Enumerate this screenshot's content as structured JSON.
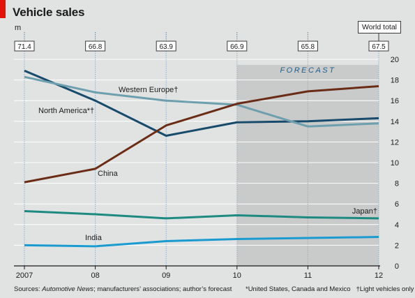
{
  "header": {
    "title": "Vehicle sales",
    "unit": "m",
    "world_total_label": "World total"
  },
  "footer": {
    "sources_prefix": "Sources: ",
    "sources_italic": "Automotive News",
    "sources_rest": "; manufacturers’ associations; author’s forecast",
    "note_1": "*United States, Canada and Mexico",
    "note_2": "†Light vehicles only"
  },
  "colors": {
    "background": "#e1e2e2",
    "forecast_shade": "#c9caca",
    "accent_red": "#e3120b",
    "north_america": "#174a6b",
    "western_europe": "#6e9fae",
    "china": "#6b2c16",
    "japan": "#1d8a82",
    "india": "#1a9bd0"
  },
  "chart_data": {
    "type": "line",
    "title": "Vehicle sales",
    "ylabel": "m",
    "x": [
      2007,
      2008,
      2009,
      2010,
      2011,
      2012
    ],
    "x_tick_labels": [
      "2007",
      "08",
      "09",
      "10",
      "11",
      "12"
    ],
    "ylim": [
      0,
      20
    ],
    "y_ticks": [
      0,
      2,
      4,
      6,
      8,
      10,
      12,
      14,
      16,
      18,
      20
    ],
    "y_axis_side": "right",
    "grid": true,
    "forecast": {
      "label": "FORECAST",
      "x_start": 2010,
      "x_end": 2012
    },
    "world_total": {
      "label": "World total",
      "values": [
        "71.4",
        "66.8",
        "63.9",
        "66.9",
        "65.8",
        "67.5"
      ]
    },
    "series": [
      {
        "key": "north_america",
        "name": "North America*†",
        "values": [
          18.9,
          16.0,
          12.6,
          13.9,
          14.0,
          14.3
        ]
      },
      {
        "key": "western_europe",
        "name": "Western Europe†",
        "values": [
          18.3,
          16.8,
          16.0,
          15.6,
          13.5,
          13.8
        ]
      },
      {
        "key": "china",
        "name": "China",
        "values": [
          8.1,
          9.4,
          13.6,
          15.7,
          16.9,
          17.4
        ]
      },
      {
        "key": "japan",
        "name": "Japan†",
        "values": [
          5.3,
          5.0,
          4.6,
          4.9,
          4.7,
          4.6
        ]
      },
      {
        "key": "india",
        "name": "India",
        "values": [
          2.0,
          1.9,
          2.4,
          2.6,
          2.7,
          2.8
        ]
      }
    ]
  }
}
